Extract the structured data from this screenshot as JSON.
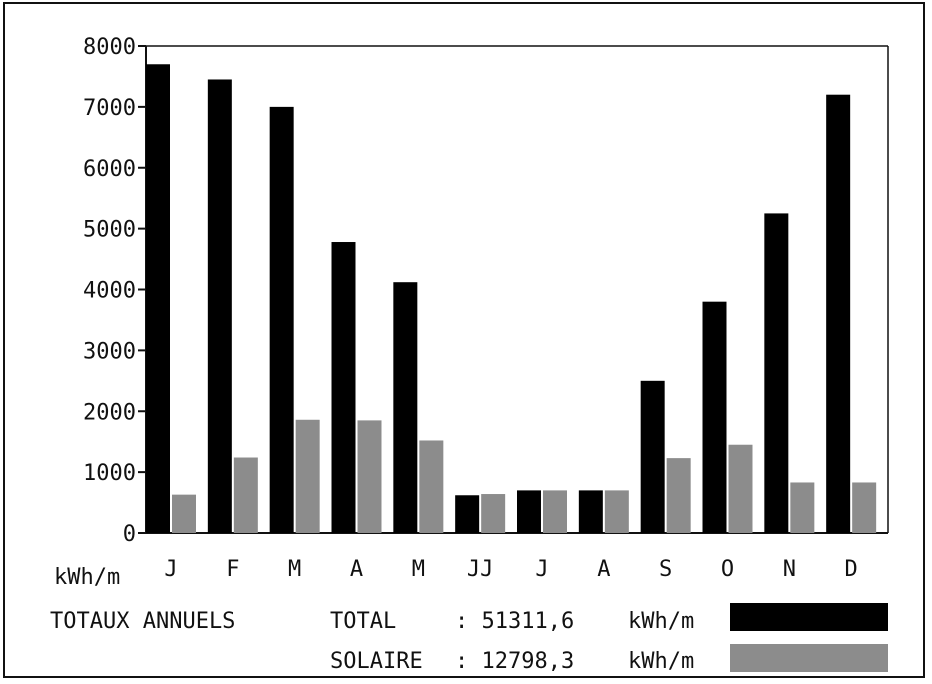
{
  "chart_data": {
    "type": "bar",
    "categories": [
      "J",
      "F",
      "M",
      "A",
      "M",
      "JJ",
      "J",
      "A",
      "S",
      "O",
      "N",
      "D"
    ],
    "series": [
      {
        "values": [
          7700,
          7450,
          7000,
          4780,
          4120,
          620,
          700,
          700,
          2500,
          3800,
          5250,
          7200
        ],
        "color": "#000000"
      },
      {
        "values": [
          630,
          1240,
          1860,
          1850,
          1520,
          640,
          700,
          700,
          1230,
          1450,
          830,
          830
        ],
        "color": "#8c8c8c"
      }
    ],
    "yticks": [
      0,
      1000,
      2000,
      3000,
      4000,
      5000,
      6000,
      7000,
      8000
    ],
    "ylim": [
      0,
      8000
    ],
    "ylabel": "kWh/m",
    "grid": false
  },
  "totals": {
    "heading": "TOTAUX ANNUELS",
    "total_label": "TOTAL",
    "total_value": ": 51311,6",
    "total_unit": "kWh/m",
    "solar_label": "SOLAIRE",
    "solar_value": ": 12798,3",
    "solar_unit": "kWh/m"
  }
}
